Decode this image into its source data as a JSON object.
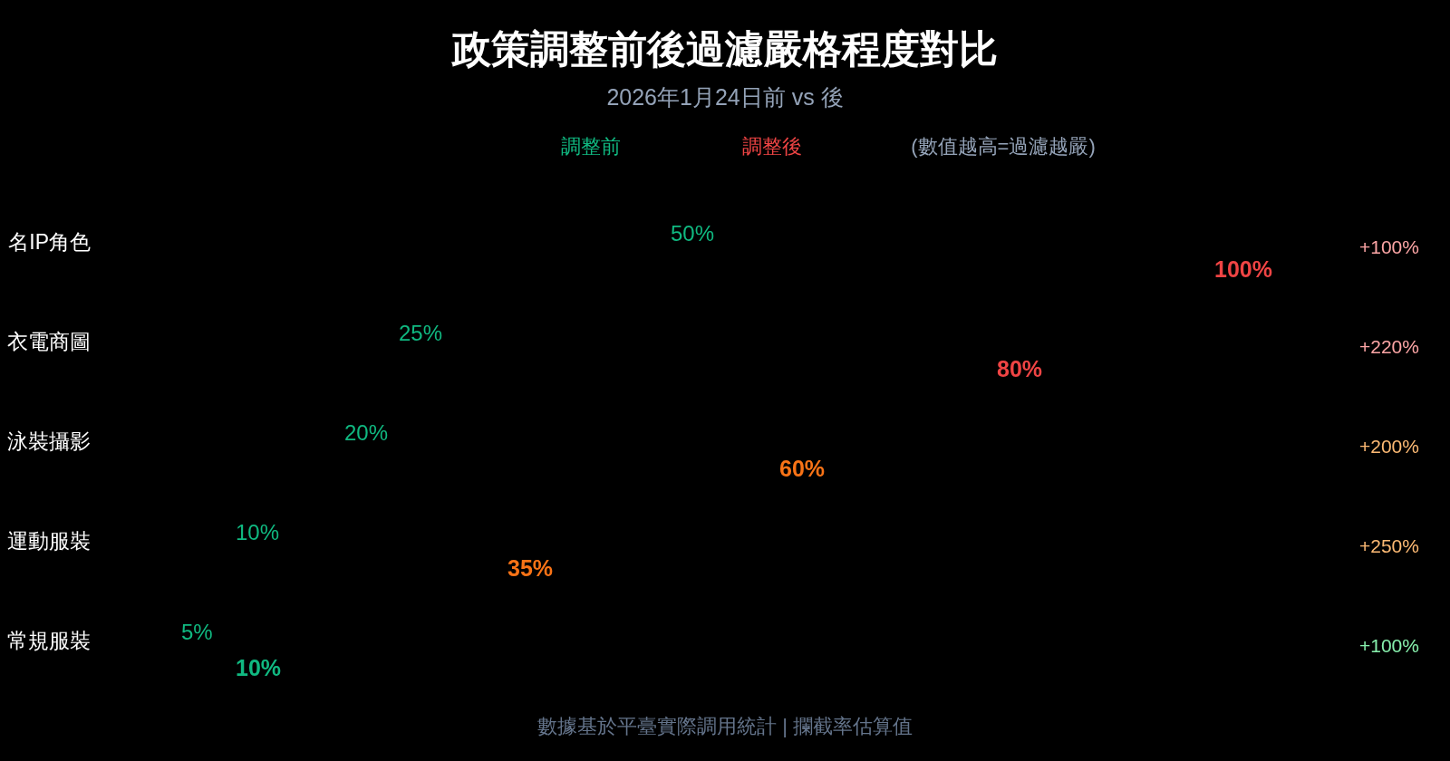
{
  "chart_data": {
    "type": "other",
    "title": "政策調整前後過濾嚴格程度對比",
    "subtitle": "2026年1月24日前 vs 後",
    "categories": [
      "名IP角色",
      "衣電商圖",
      "泳裝攝影",
      "運動服裝",
      "常規服裝"
    ],
    "series": [
      {
        "name": "調整前",
        "color": "#10b981",
        "values": [
          50,
          25,
          20,
          10,
          5
        ],
        "value_labels": [
          "50%",
          "25%",
          "20%",
          "10%",
          "5%"
        ]
      },
      {
        "name": "調整後",
        "color": "#ef4444",
        "colors": [
          "#ef4444",
          "#ef4444",
          "#f97316",
          "#f97316",
          "#10b981"
        ],
        "values": [
          100,
          80,
          60,
          35,
          10
        ],
        "value_labels": [
          "100%",
          "80%",
          "60%",
          "35%",
          "10%"
        ]
      },
      {
        "colors": [
          "#fca5a5",
          "#fca5a5",
          "#fdba74",
          "#fdba74",
          "#86efac"
        ],
        "values": [
          100,
          220,
          200,
          250,
          100
        ],
        "value_labels": [
          "+100%",
          "+220%",
          "+200%",
          "+250%",
          "+100%"
        ]
      }
    ],
    "annotations": [
      "(數值越高=過濾越嚴)",
      "數據基於平臺實際調用統計 | 攔截率估算值"
    ]
  }
}
